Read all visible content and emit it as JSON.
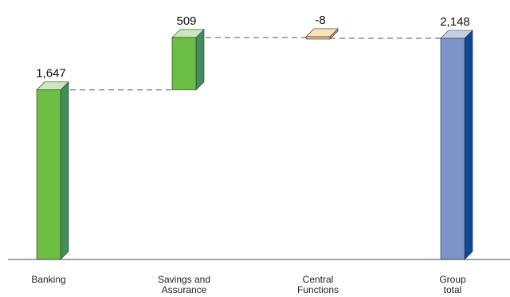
{
  "chart_data": {
    "type": "bar",
    "subtype": "waterfall",
    "title": "",
    "xlabel": "",
    "ylabel": "",
    "ylim": [
      0,
      2148
    ],
    "grid": false,
    "legend": "none",
    "categories": [
      "Banking",
      "Savings and Assurance",
      "Central Functions",
      "Group total"
    ],
    "category_lines": [
      [
        "Banking"
      ],
      [
        "Savings and",
        "Assurance"
      ],
      [
        "Central",
        "Functions"
      ],
      [
        "Group",
        "total"
      ]
    ],
    "values": [
      1647,
      509,
      -8,
      2148
    ],
    "value_labels": [
      "1,647",
      "509",
      "-8",
      "2,148"
    ],
    "bar_kind": [
      "total",
      "delta",
      "delta",
      "total"
    ],
    "connectors": "dashed",
    "colors": {
      "banking": {
        "front": "#6cbe45",
        "side": "#3f8f5c",
        "top": "#c9e8bf"
      },
      "savings": {
        "front": "#6cbe45",
        "side": "#3f8f5c",
        "top": "#c9e8bf"
      },
      "central": {
        "front": "#f4b77a",
        "side": "#d99350",
        "top": "#fde1bf"
      },
      "group": {
        "front": "#7b93c6",
        "side": "#0a4a99",
        "top": "#c4cfe6"
      },
      "axis": "#444444",
      "connector": "#555555"
    }
  }
}
